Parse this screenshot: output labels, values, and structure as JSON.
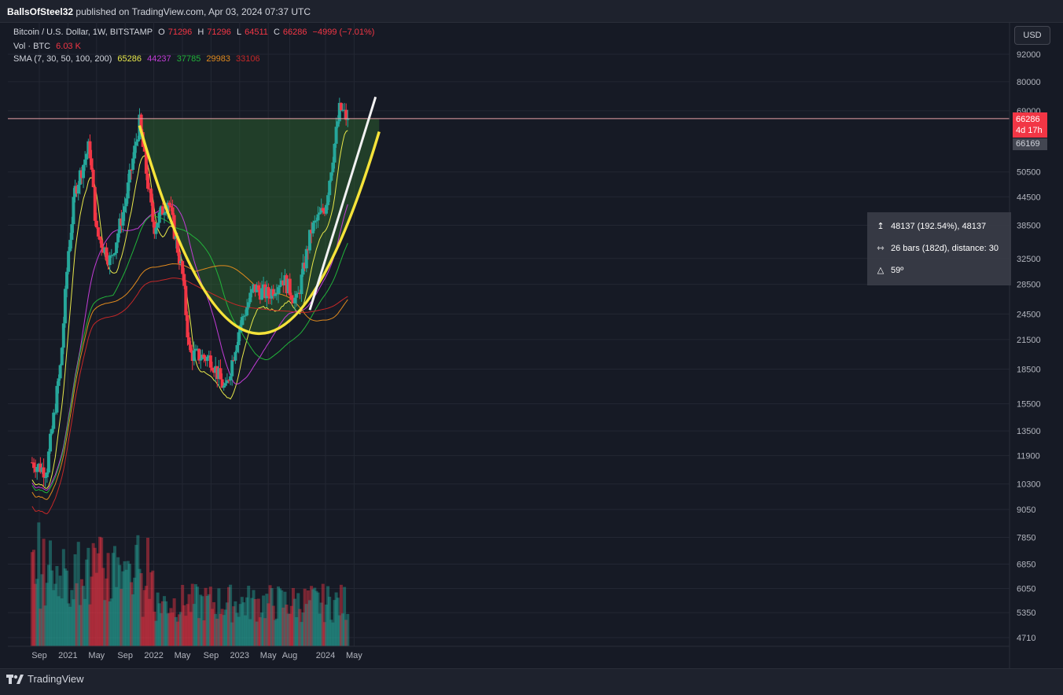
{
  "header": {
    "author": "BallsOfSteel32",
    "published_text": "published on TradingView.com, Apr 03, 2024 07:37 UTC"
  },
  "legend": {
    "symbol": "Bitcoin / U.S. Dollar, 1W, BITSTAMP",
    "ohlc": {
      "O": "71296",
      "H": "71296",
      "L": "64511",
      "C": "66286",
      "change": "−4999 (−7.01%)"
    },
    "volume_label": "Vol · BTC",
    "volume_value": "6.03 K",
    "sma_label": "SMA (7, 30, 50, 100, 200)",
    "sma_values": [
      "65286",
      "44237",
      "37785",
      "29983",
      "33106"
    ]
  },
  "currency_button": "USD",
  "price_tags": {
    "last": "66286",
    "countdown": "4d 17h",
    "prev": "66169"
  },
  "measure": {
    "price": "48137 (192.54%), 48137",
    "bars": "26 bars (182d), distance: 30",
    "angle": "59º"
  },
  "footer": {
    "brand": "TradingView"
  },
  "colors": {
    "bg": "#161a25",
    "up": "#26a69a",
    "down": "#f23645",
    "sma7": "#e8e84a",
    "sma30": "#c23cd6",
    "sma50": "#22b33a",
    "sma100": "#e08a1e",
    "sma200": "#c62828",
    "cup": "#f5e33a",
    "fill": "#2e6b2e"
  },
  "chart_data": {
    "type": "candlestick",
    "title": "Bitcoin / U.S. Dollar, 1W, BITSTAMP",
    "x_ticks": [
      "Sep",
      "2021",
      "May",
      "Sep",
      "2022",
      "May",
      "Sep",
      "2023",
      "May",
      "Aug",
      "2024",
      "May"
    ],
    "y_ticks": [
      92000,
      80000,
      69000,
      50500,
      44500,
      38500,
      32500,
      28500,
      24500,
      21500,
      18500,
      15500,
      13500,
      11900,
      10300,
      9050,
      7850,
      6850,
      6050,
      5350,
      4710
    ],
    "y_scale": "log",
    "last_price": 66286,
    "series": [
      {
        "name": "BTCUSD weekly close (approx.)",
        "x": [
          "2020-08",
          "2020-10",
          "2020-12",
          "2021-01",
          "2021-02",
          "2021-04",
          "2021-05",
          "2021-07",
          "2021-09",
          "2021-11",
          "2022-01",
          "2022-03",
          "2022-05",
          "2022-06",
          "2022-09",
          "2022-11",
          "2023-01",
          "2023-03",
          "2023-05",
          "2023-07",
          "2023-09",
          "2023-11",
          "2024-01",
          "2024-03",
          "2024-04"
        ],
        "values": [
          11500,
          11000,
          19000,
          33000,
          46000,
          58000,
          37000,
          32000,
          43000,
          65000,
          38000,
          44000,
          30000,
          20000,
          19500,
          16500,
          23000,
          28000,
          27000,
          29500,
          26000,
          37500,
          42500,
          70000,
          66286
        ]
      }
    ],
    "sma_values": {
      "SMA 7": 65286,
      "SMA 30": 44237,
      "SMA 50": 37785,
      "SMA 100": 29983,
      "SMA 200": 33106
    },
    "annotations": [
      "cup and handle curve",
      "resistance line at ~66286",
      "price range measure"
    ]
  }
}
